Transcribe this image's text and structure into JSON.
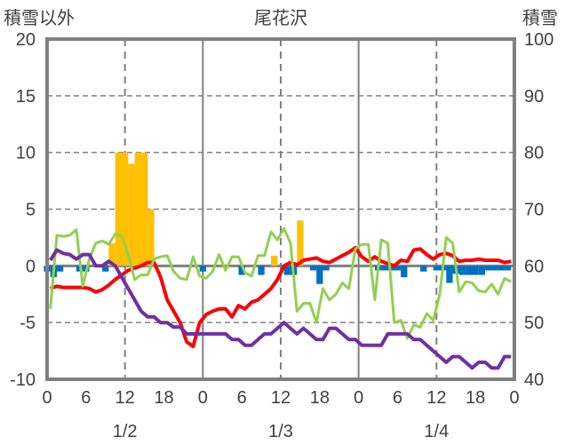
{
  "chart_data": {
    "type": "bar+line",
    "title": "尾花沢",
    "ylabel_left": "積雪以外",
    "ylabel_right": "積雪",
    "ylim_left": [
      -10,
      20
    ],
    "ylim_right": [
      40,
      100
    ],
    "yticks_left": [
      "20",
      "15",
      "10",
      "5",
      "0",
      "-5",
      "-10"
    ],
    "yticks_right": [
      "100",
      "90",
      "80",
      "70",
      "60",
      "50",
      "40"
    ],
    "xlim_hours": [
      0,
      72
    ],
    "xticks": [
      "0",
      "6",
      "12",
      "18",
      "0",
      "6",
      "12",
      "18",
      "0",
      "6",
      "12",
      "18",
      "0"
    ],
    "day_labels": [
      "1/2",
      "1/3",
      "1/4"
    ],
    "grid": true,
    "colors": {
      "temperature": "#ff0000",
      "snow_depth": "#7030a0",
      "green_series": "#92d050",
      "positive_bars": "#ffc000",
      "negative_bars": "#0070c0",
      "axis": "#808080"
    },
    "series": [
      {
        "name": "red-line",
        "axis": "left",
        "values": [
          -2.0,
          -1.8,
          -1.9,
          -1.9,
          -1.9,
          -1.9,
          -2.0,
          -2.3,
          -2.1,
          -1.7,
          -1.2,
          -0.8,
          -0.4,
          -0.2,
          0,
          0.3,
          0.3,
          -1.0,
          -3.0,
          -4.0,
          -5.0,
          -6.7,
          -7.1,
          -5.0,
          -4.3,
          -4.0,
          -3.8,
          -3.8,
          -4.5,
          -3.5,
          -3.8,
          -3.2,
          -3.0,
          -2.5,
          -2.0,
          -1.2,
          0,
          0.3,
          0.1,
          0.5,
          0.6,
          0.7,
          0.4,
          0.3,
          0.6,
          0.9,
          1.2,
          1.6,
          0.8,
          0.4,
          0.8,
          0.4,
          0.2,
          0,
          0.5,
          0.4,
          1.4,
          1.5,
          1.0,
          0.6,
          1.0,
          1.1,
          0.9,
          0.4,
          0.5,
          0.5,
          0.6,
          0.5,
          0.5,
          0.5,
          0.3,
          0.4
        ]
      },
      {
        "name": "green-line",
        "axis": "left",
        "values": [
          -3.8,
          2.7,
          2.6,
          2.7,
          3.2,
          -1.8,
          0.6,
          2.0,
          2.2,
          1.9,
          2.8,
          2.6,
          1.0,
          -1.2,
          -0.8,
          -0.8,
          0.6,
          0.8,
          0.9,
          -0.5,
          -1.1,
          -1.2,
          0.8,
          -0.9,
          -1.1,
          -0.5,
          1.0,
          -0.4,
          0.8,
          0.8,
          -0.6,
          -0.9,
          0.9,
          0.9,
          3.0,
          2.3,
          3.3,
          2.0,
          -4.0,
          -3.3,
          -3.3,
          -5.0,
          -2.0,
          -3.0,
          -2.5,
          -1.5,
          -2.0,
          1.5,
          1.9,
          1.9,
          -3.0,
          2.3,
          2.0,
          -5.0,
          -4.8,
          -6.4,
          -5.2,
          -5.4,
          -4.2,
          -4.8,
          -2.5,
          2.5,
          2.0,
          -2.3,
          -1.4,
          -1.5,
          -2.2,
          -2.3,
          -1.6,
          -2.5,
          -1.1,
          -1.4
        ]
      },
      {
        "name": "snow-depth",
        "axis": "right",
        "values": [
          61,
          62.8,
          62.2,
          62,
          61.2,
          62,
          62,
          60,
          60,
          60.8,
          60,
          58,
          56,
          54,
          52,
          51,
          51,
          50,
          50,
          49.2,
          49.2,
          48,
          48,
          48,
          48,
          48,
          48,
          48,
          47,
          47,
          46,
          46,
          47,
          48,
          48,
          49,
          50,
          49,
          48,
          49,
          48,
          47,
          47,
          49,
          49,
          48,
          47,
          47,
          46,
          46,
          46,
          46,
          48,
          48,
          48,
          48,
          47,
          47,
          46,
          45,
          44,
          43,
          44,
          44,
          43,
          42,
          43,
          43,
          42,
          42,
          44,
          44
        ]
      }
    ],
    "positive_bars": {
      "axis": "left",
      "hours": [
        10,
        11,
        12,
        13,
        14,
        15,
        16,
        35,
        39
      ],
      "values": [
        2.0,
        10,
        10,
        9,
        10,
        10,
        5,
        0.9,
        4.0
      ]
    },
    "negative_bars": {
      "axis": "left",
      "hours": [
        0,
        1,
        2,
        5,
        6,
        9,
        24,
        30,
        33,
        37,
        38,
        41,
        42,
        43,
        51,
        52,
        53,
        54,
        55,
        58,
        60,
        61,
        62,
        63,
        64,
        65,
        66,
        67,
        68,
        69,
        70,
        71
      ],
      "values": [
        -0.5,
        -1.0,
        -0.5,
        -0.5,
        -0.5,
        -0.5,
        -0.5,
        -0.8,
        -0.8,
        -0.8,
        -0.8,
        -0.4,
        -1.6,
        -0.4,
        -0.4,
        -0.4,
        -0.4,
        -0.4,
        -1.0,
        -0.5,
        -0.4,
        -0.4,
        -1.5,
        -0.7,
        -0.8,
        -0.8,
        -0.8,
        -0.8,
        -0.4,
        -0.4,
        -0.4,
        -0.4
      ]
    }
  }
}
